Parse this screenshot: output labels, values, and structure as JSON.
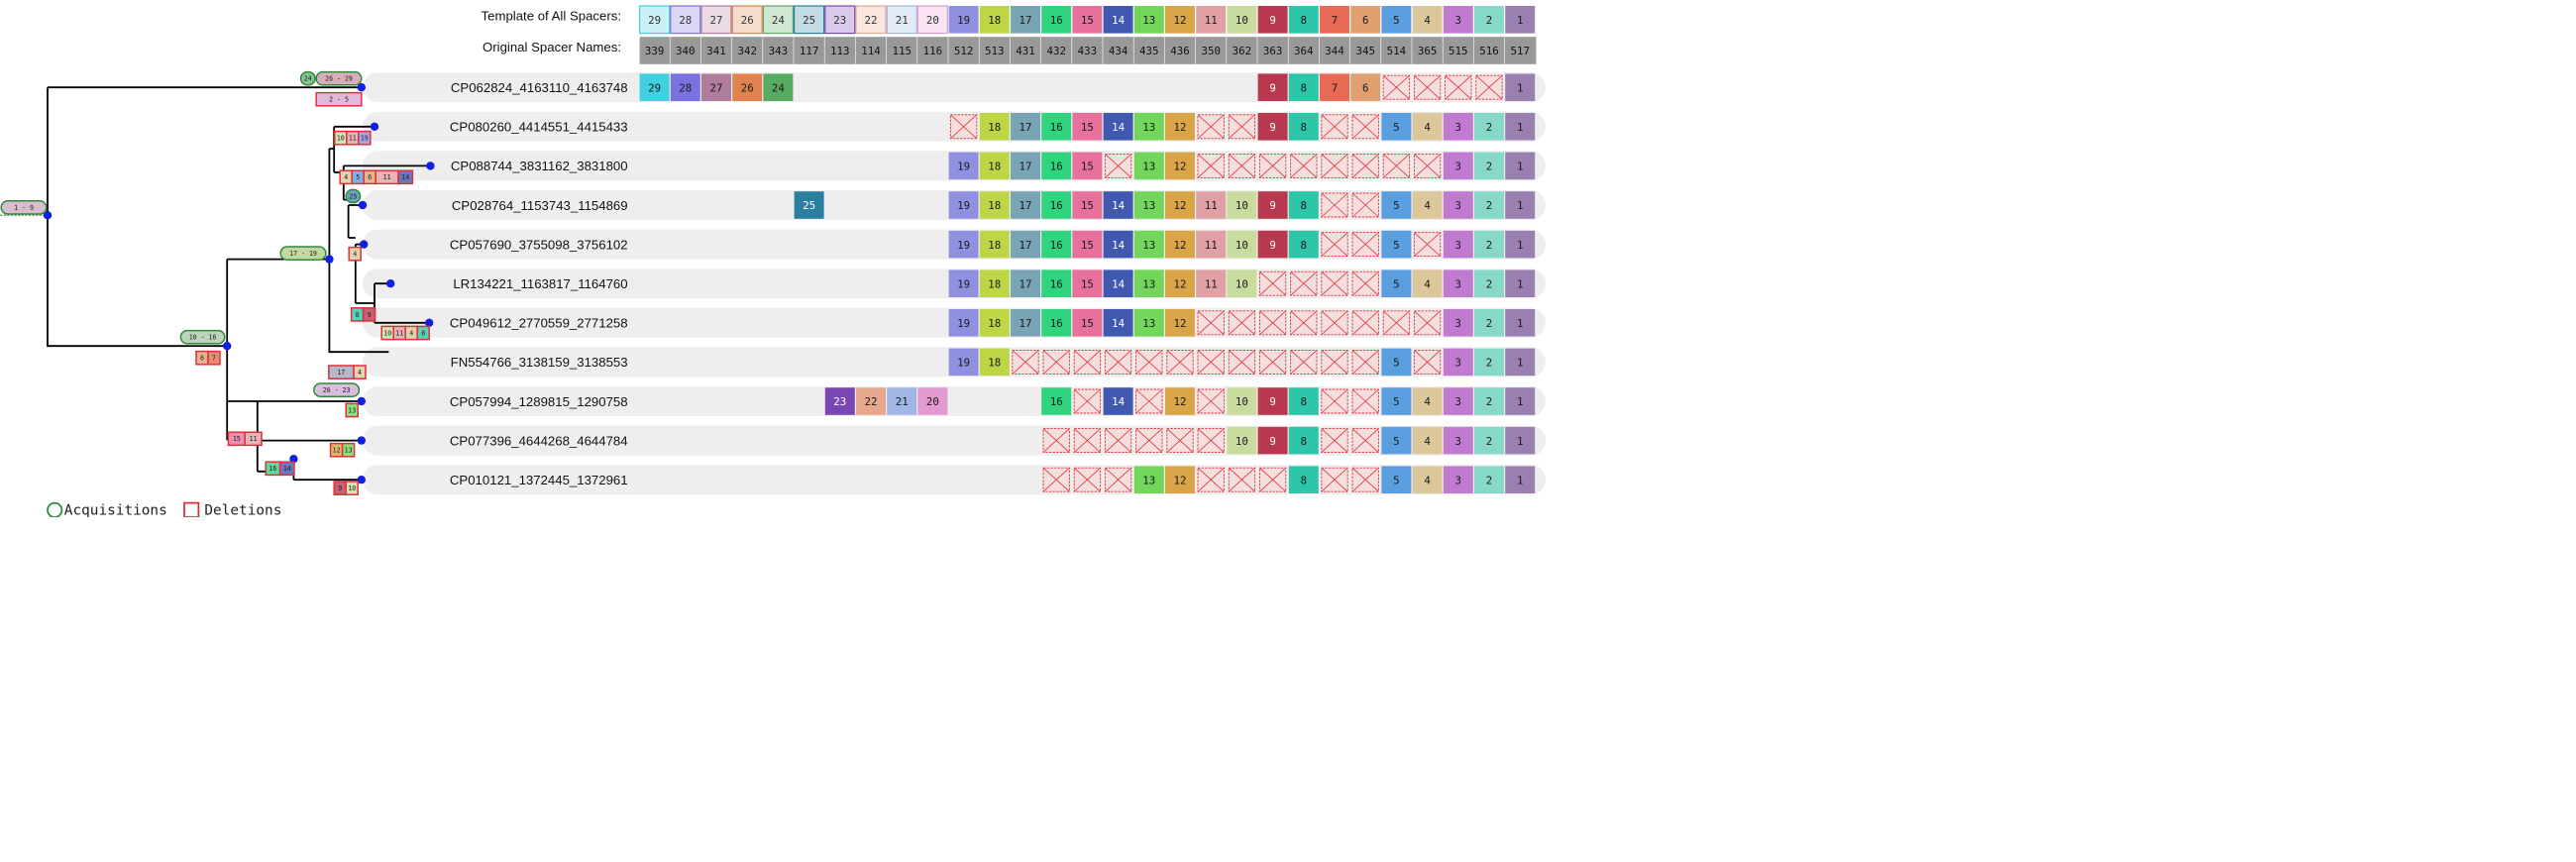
{
  "header": {
    "template_label": "Template of All Spacers:",
    "original_label": "Original Spacer Names:"
  },
  "template": [
    29,
    28,
    27,
    26,
    24,
    25,
    23,
    22,
    21,
    20,
    19,
    18,
    17,
    16,
    15,
    14,
    13,
    12,
    11,
    10,
    9,
    8,
    7,
    6,
    5,
    4,
    3,
    2,
    1
  ],
  "original_names": [
    "339",
    "340",
    "341",
    "342",
    "343",
    "117",
    "113",
    "114",
    "115",
    "116",
    "512",
    "513",
    "431",
    "432",
    "433",
    "434",
    "435",
    "436",
    "350",
    "362",
    "363",
    "364",
    "344",
    "345",
    "514",
    "365",
    "515",
    "516",
    "517"
  ],
  "colors": {
    "1": "#9a80b0",
    "2": "#86d9c6",
    "3": "#c07ad0",
    "4": "#dcc79a",
    "5": "#5a9ee0",
    "6": "#e0a070",
    "7": "#e86a55",
    "8": "#2ec6a8",
    "9": "#b83850",
    "10": "#c9dc9e",
    "11": "#e0a0a4",
    "12": "#daa548",
    "13": "#72d65a",
    "14": "#4058b0",
    "15": "#e8709c",
    "16": "#30d47e",
    "17": "#78a4b4",
    "18": "#bcd646",
    "19": "#9090e0",
    "20": "#e29ad0",
    "21": "#a0b6e4",
    "22": "#e8a88e",
    "23": "#7a46b4",
    "24": "#58ab62",
    "25": "#2a7fa0",
    "26": "#e0834e",
    "27": "#b07c9c",
    "28": "#7a72e0",
    "29": "#40d0e0"
  },
  "rows": [
    {
      "name": "CP062824_4163110_4163748",
      "cells": {
        "29": "p",
        "28": "p",
        "27": "p",
        "26": "p",
        "24": "p",
        "9": "p",
        "8": "p",
        "7": "p",
        "6": "p",
        "5": "d",
        "4": "d",
        "3": "d",
        "2": "d",
        "1": "p"
      }
    },
    {
      "name": "CP080260_4414551_4415433",
      "cells": {
        "19": "d",
        "18": "p",
        "17": "p",
        "16": "p",
        "15": "p",
        "14": "p",
        "13": "p",
        "12": "p",
        "11": "d",
        "10": "d",
        "9": "p",
        "8": "p",
        "7": "d",
        "6": "d",
        "5": "p",
        "4": "p",
        "3": "p",
        "2": "p",
        "1": "p"
      }
    },
    {
      "name": "CP088744_3831162_3831800",
      "cells": {
        "19": "p",
        "18": "p",
        "17": "p",
        "16": "p",
        "15": "p",
        "14": "d",
        "13": "p",
        "12": "p",
        "11": "d",
        "10": "d",
        "9": "d",
        "8": "d",
        "7": "d",
        "6": "d",
        "5": "d",
        "4": "d",
        "3": "p",
        "2": "p",
        "1": "p"
      }
    },
    {
      "name": "CP028764_1153743_1154869",
      "cells": {
        "25": "p",
        "19": "p",
        "18": "p",
        "17": "p",
        "16": "p",
        "15": "p",
        "14": "p",
        "13": "p",
        "12": "p",
        "11": "p",
        "10": "p",
        "9": "p",
        "8": "p",
        "7": "d",
        "6": "d",
        "5": "p",
        "4": "p",
        "3": "p",
        "2": "p",
        "1": "p"
      }
    },
    {
      "name": "CP057690_3755098_3756102",
      "cells": {
        "19": "p",
        "18": "p",
        "17": "p",
        "16": "p",
        "15": "p",
        "14": "p",
        "13": "p",
        "12": "p",
        "11": "p",
        "10": "p",
        "9": "p",
        "8": "p",
        "7": "d",
        "6": "d",
        "5": "p",
        "4": "d",
        "3": "p",
        "2": "p",
        "1": "p"
      }
    },
    {
      "name": "LR134221_1163817_1164760",
      "cells": {
        "19": "p",
        "18": "p",
        "17": "p",
        "16": "p",
        "15": "p",
        "14": "p",
        "13": "p",
        "12": "p",
        "11": "p",
        "10": "p",
        "9": "d",
        "8": "d",
        "7": "d",
        "6": "d",
        "5": "p",
        "4": "p",
        "3": "p",
        "2": "p",
        "1": "p"
      }
    },
    {
      "name": "CP049612_2770559_2771258",
      "cells": {
        "19": "p",
        "18": "p",
        "17": "p",
        "16": "p",
        "15": "p",
        "14": "p",
        "13": "p",
        "12": "p",
        "11": "d",
        "10": "d",
        "9": "d",
        "8": "d",
        "7": "d",
        "6": "d",
        "5": "d",
        "4": "d",
        "3": "p",
        "2": "p",
        "1": "p"
      }
    },
    {
      "name": "FN554766_3138159_3138553",
      "cells": {
        "19": "p",
        "18": "p",
        "17": "d",
        "16": "d",
        "15": "d",
        "14": "d",
        "13": "d",
        "12": "d",
        "11": "d",
        "10": "d",
        "9": "d",
        "8": "d",
        "7": "d",
        "6": "d",
        "5": "p",
        "4": "d",
        "3": "p",
        "2": "p",
        "1": "p"
      }
    },
    {
      "name": "CP057994_1289815_1290758",
      "cells": {
        "23": "p",
        "22": "p",
        "21": "p",
        "20": "p",
        "16": "p",
        "15": "d",
        "14": "p",
        "13": "d",
        "12": "p",
        "11": "d",
        "10": "p",
        "9": "p",
        "8": "p",
        "7": "d",
        "6": "d",
        "5": "p",
        "4": "p",
        "3": "p",
        "2": "p",
        "1": "p"
      }
    },
    {
      "name": "CP077396_4644268_4644784",
      "cells": {
        "16": "d",
        "15": "d",
        "14": "d",
        "13": "d",
        "12": "d",
        "11": "d",
        "10": "p",
        "9": "p",
        "8": "p",
        "7": "d",
        "6": "d",
        "5": "p",
        "4": "p",
        "3": "p",
        "2": "p",
        "1": "p"
      }
    },
    {
      "name": "CP010121_1372445_1372961",
      "cells": {
        "16": "d",
        "15": "d",
        "14": "d",
        "13": "p",
        "12": "p",
        "11": "d",
        "10": "d",
        "9": "d",
        "8": "p",
        "7": "d",
        "6": "d",
        "5": "p",
        "4": "p",
        "3": "p",
        "2": "p",
        "1": "p"
      }
    }
  ],
  "tree_events": [
    {
      "kind": "acq",
      "label": "1 - 9"
    },
    {
      "kind": "acq",
      "label": "24"
    },
    {
      "kind": "acq",
      "label": "26 - 29"
    },
    {
      "kind": "del",
      "label": "2 - 5"
    },
    {
      "kind": "acq",
      "label": "10 - 16"
    },
    {
      "kind": "del",
      "label": "6"
    },
    {
      "kind": "del",
      "label": "7"
    },
    {
      "kind": "acq",
      "label": "17 - 19"
    },
    {
      "kind": "del",
      "label": "10"
    },
    {
      "kind": "del",
      "label": "11"
    },
    {
      "kind": "del",
      "label": "19"
    },
    {
      "kind": "del",
      "label": "4"
    },
    {
      "kind": "del",
      "label": "5"
    },
    {
      "kind": "del",
      "label": "6"
    },
    {
      "kind": "del",
      "label": "11"
    },
    {
      "kind": "del",
      "label": "14"
    },
    {
      "kind": "acq",
      "label": "25"
    },
    {
      "kind": "del",
      "label": "4"
    },
    {
      "kind": "del",
      "label": "8"
    },
    {
      "kind": "del",
      "label": "9"
    },
    {
      "kind": "del",
      "label": "10"
    },
    {
      "kind": "del",
      "label": "11"
    },
    {
      "kind": "del",
      "label": "4"
    },
    {
      "kind": "del",
      "label": "8"
    },
    {
      "kind": "del",
      "label": "17"
    },
    {
      "kind": "del",
      "label": "4"
    },
    {
      "kind": "acq",
      "label": "20 - 23"
    },
    {
      "kind": "del",
      "label": "13"
    },
    {
      "kind": "del",
      "label": "15"
    },
    {
      "kind": "del",
      "label": "11"
    },
    {
      "kind": "del",
      "label": "16"
    },
    {
      "kind": "del",
      "label": "14"
    },
    {
      "kind": "del",
      "label": "12"
    },
    {
      "kind": "del",
      "label": "13"
    },
    {
      "kind": "del",
      "label": "9"
    },
    {
      "kind": "del",
      "label": "10"
    }
  ],
  "legend": {
    "acquisitions": "Acquisitions",
    "deletions": "Deletions",
    "acq_color": "#2e8b3a",
    "del_color": "#e0303a"
  },
  "style": {
    "row_bg": "#eeeeee",
    "names_bg": "#999999",
    "node_color": "#1020e0",
    "deletion_stroke": "#e0303a",
    "deletion_fill": "#f5dede"
  }
}
